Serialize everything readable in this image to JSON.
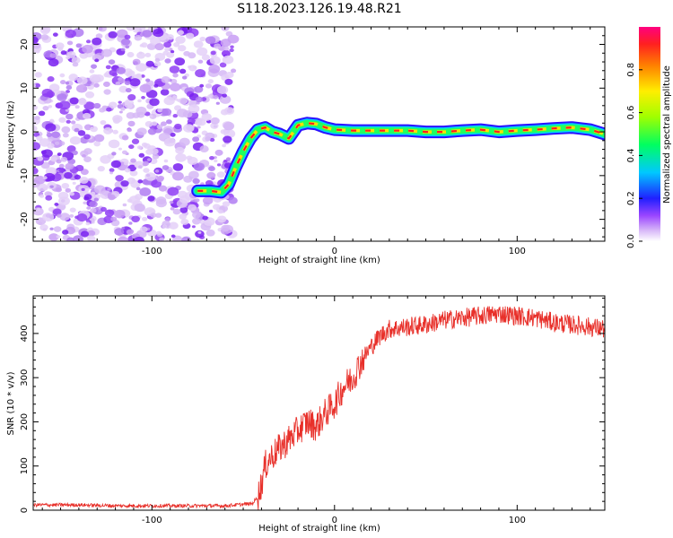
{
  "title": "S118.2023.126.19.48.R21",
  "chart_data": [
    {
      "type": "heatmap",
      "xlabel": "Height of straight line (km)",
      "ylabel": "Frequency (Hz)",
      "xlim": [
        -165,
        148
      ],
      "ylim": [
        -25,
        24
      ],
      "x_ticks": [
        -100,
        0,
        100
      ],
      "y_ticks": [
        -20,
        -10,
        0,
        10,
        20
      ],
      "colorbar": {
        "label": "Normalized spectral amplitude",
        "range": [
          0,
          1
        ],
        "ticks": [
          "0.0",
          "0.2",
          "0.4",
          "0.6",
          "0.8"
        ]
      },
      "ridge": {
        "x": [
          -75,
          -68,
          -62,
          -58,
          -54,
          -50,
          -46,
          -42,
          -38,
          -34,
          -30,
          -25,
          -20,
          -15,
          -10,
          -5,
          0,
          10,
          20,
          30,
          40,
          50,
          60,
          70,
          80,
          90,
          100,
          110,
          120,
          130,
          140,
          148
        ],
        "y": [
          -13.5,
          -13.5,
          -13.8,
          -12,
          -8,
          -4.5,
          -1.5,
          0.5,
          1,
          0,
          -0.5,
          -1.5,
          1.5,
          2,
          1.8,
          1,
          0.5,
          0.3,
          0.3,
          0.3,
          0.3,
          0,
          0,
          0.3,
          0.5,
          0,
          0.3,
          0.5,
          0.8,
          1,
          0.5,
          -0.5
        ]
      },
      "noise_region_x": [
        -165,
        -55
      ]
    },
    {
      "type": "line",
      "xlabel": "Height of straight line (km)",
      "ylabel": "SNR (10 * v/v)",
      "xlim": [
        -165,
        148
      ],
      "ylim": [
        0,
        485
      ],
      "x_ticks": [
        -100,
        0,
        100
      ],
      "y_ticks": [
        0,
        100,
        200,
        300,
        400
      ],
      "series": [
        {
          "color": "#e8302a",
          "x": [
            -165,
            -140,
            -120,
            -100,
            -80,
            -60,
            -45,
            -42,
            -40,
            -38,
            -35,
            -30,
            -25,
            -20,
            -15,
            -10,
            -5,
            0,
            5,
            10,
            15,
            20,
            25,
            30,
            40,
            50,
            60,
            70,
            80,
            90,
            100,
            110,
            120,
            130,
            140,
            148
          ],
          "y": [
            12,
            12,
            10,
            10,
            10,
            10,
            15,
            30,
            60,
            100,
            120,
            140,
            160,
            180,
            200,
            190,
            220,
            240,
            280,
            300,
            340,
            370,
            395,
            410,
            415,
            420,
            430,
            435,
            440,
            445,
            440,
            435,
            425,
            420,
            415,
            410
          ]
        }
      ]
    }
  ]
}
